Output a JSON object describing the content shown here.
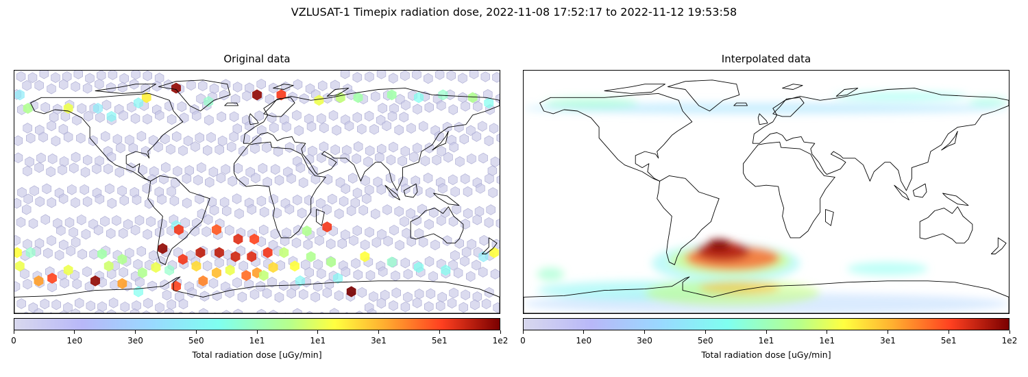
{
  "suptitle": "VZLUSAT-1 Timepix radiation dose, 2022-11-08 17:52:17 to 2022-11-12 19:53:58",
  "chart_data": [
    {
      "type": "heatmap",
      "title": "Original data",
      "projection": "equirectangular world map",
      "colorbar": {
        "label": "Total radiation dose [uGy/min]",
        "tick_labels": [
          "0",
          "1e0",
          "3e0",
          "5e0",
          "1e1",
          "1e1",
          "3e1",
          "5e1",
          "1e2"
        ]
      },
      "colors": {
        "background_hex": "#c8c8e6",
        "low": "#d8d8ee",
        "high": "#7a0000"
      },
      "hex_points": [
        {
          "lon": -60,
          "lat": 77,
          "dose": 90
        },
        {
          "lon": 0,
          "lat": 72,
          "dose": 90
        },
        {
          "lon": 18,
          "lat": 72,
          "dose": 58
        },
        {
          "lon": 46,
          "lat": 68,
          "dose": 18
        },
        {
          "lon": -36,
          "lat": 67,
          "dose": 8
        },
        {
          "lon": -82,
          "lat": 70,
          "dose": 22
        },
        {
          "lon": 100,
          "lat": 72,
          "dose": 10
        },
        {
          "lon": 120,
          "lat": 70,
          "dose": 6
        },
        {
          "lon": 160,
          "lat": 70,
          "dose": 12
        },
        {
          "lon": -170,
          "lat": 62,
          "dose": 12
        },
        {
          "lon": -140,
          "lat": 62,
          "dose": 18
        },
        {
          "lon": -118,
          "lat": 62,
          "dose": 4
        },
        {
          "lon": -88,
          "lat": 66,
          "dose": 5
        },
        {
          "lon": 62,
          "lat": 70,
          "dose": 14
        },
        {
          "lon": 75,
          "lat": 70,
          "dose": 10
        },
        {
          "lon": 138,
          "lat": 72,
          "dose": 8
        },
        {
          "lon": -108,
          "lat": 56,
          "dose": 5
        },
        {
          "lon": 172,
          "lat": 66,
          "dose": 6
        },
        {
          "lon": -176,
          "lat": 72,
          "dose": 4
        },
        {
          "lon": 52,
          "lat": -26,
          "dose": 60
        },
        {
          "lon": 37,
          "lat": -29,
          "dose": 12
        },
        {
          "lon": -60,
          "lat": -25,
          "dose": 5
        },
        {
          "lon": -30,
          "lat": -28,
          "dose": 50
        },
        {
          "lon": -58,
          "lat": -28,
          "dose": 60
        },
        {
          "lon": -28,
          "lat": -45,
          "dose": 75
        },
        {
          "lon": -42,
          "lat": -45,
          "dose": 75
        },
        {
          "lon": -14,
          "lat": -35,
          "dose": 65
        },
        {
          "lon": -2,
          "lat": -35,
          "dose": 55
        },
        {
          "lon": -16,
          "lat": -48,
          "dose": 70
        },
        {
          "lon": -4,
          "lat": -48,
          "dose": 65
        },
        {
          "lon": 8,
          "lat": -45,
          "dose": 60
        },
        {
          "lon": -20,
          "lat": -58,
          "dose": 18
        },
        {
          "lon": 12,
          "lat": -56,
          "dose": 25
        },
        {
          "lon": 28,
          "lat": -55,
          "dose": 20
        },
        {
          "lon": -70,
          "lat": -42,
          "dose": 90
        },
        {
          "lon": -55,
          "lat": -50,
          "dose": 60
        },
        {
          "lon": -45,
          "lat": -55,
          "dose": 25
        },
        {
          "lon": -65,
          "lat": -58,
          "dose": 8
        },
        {
          "lon": -85,
          "lat": -60,
          "dose": 12
        },
        {
          "lon": -110,
          "lat": -55,
          "dose": 15
        },
        {
          "lon": -140,
          "lat": -58,
          "dose": 18
        },
        {
          "lon": -152,
          "lat": -64,
          "dose": 55
        },
        {
          "lon": -162,
          "lat": -66,
          "dose": 35
        },
        {
          "lon": -176,
          "lat": -55,
          "dose": 18
        },
        {
          "lon": -178,
          "lat": -45,
          "dose": 20
        },
        {
          "lon": -168,
          "lat": -45,
          "dose": 8
        },
        {
          "lon": -120,
          "lat": -66,
          "dose": 90
        },
        {
          "lon": -100,
          "lat": -68,
          "dose": 35
        },
        {
          "lon": -88,
          "lat": -74,
          "dose": 6
        },
        {
          "lon": -60,
          "lat": -70,
          "dose": 55
        },
        {
          "lon": -40,
          "lat": -66,
          "dose": 40
        },
        {
          "lon": -30,
          "lat": -60,
          "dose": 30
        },
        {
          "lon": -8,
          "lat": -62,
          "dose": 45
        },
        {
          "lon": 0,
          "lat": -60,
          "dose": 35
        },
        {
          "lon": 32,
          "lat": -66,
          "dose": 5
        },
        {
          "lon": 55,
          "lat": -52,
          "dose": 12
        },
        {
          "lon": 80,
          "lat": -48,
          "dose": 20
        },
        {
          "lon": 100,
          "lat": -52,
          "dose": 8
        },
        {
          "lon": 120,
          "lat": -56,
          "dose": 6
        },
        {
          "lon": 140,
          "lat": -58,
          "dose": 6
        },
        {
          "lon": 168,
          "lat": -48,
          "dose": 4
        },
        {
          "lon": 176,
          "lat": -45,
          "dose": 20
        },
        {
          "lon": 70,
          "lat": -74,
          "dose": 100
        },
        {
          "lon": 40,
          "lat": -48,
          "dose": 12
        },
        {
          "lon": 20,
          "lat": -45,
          "dose": 14
        },
        {
          "lon": -100,
          "lat": -50,
          "dose": 12
        },
        {
          "lon": -115,
          "lat": -46,
          "dose": 10
        },
        {
          "lon": 60,
          "lat": -64,
          "dose": 5
        },
        {
          "lon": -75,
          "lat": -56,
          "dose": 18
        },
        {
          "lon": 5,
          "lat": -62,
          "dose": 14
        }
      ]
    },
    {
      "type": "heatmap",
      "title": "Interpolated data",
      "projection": "equirectangular world map",
      "colorbar": {
        "label": "Total radiation dose [uGy/min]",
        "tick_labels": [
          "0",
          "1e0",
          "3e0",
          "5e0",
          "1e1",
          "1e1",
          "3e1",
          "5e1",
          "1e2"
        ]
      },
      "colors": {
        "background_hex": "#ffffff",
        "low": "#d8d8ee",
        "high": "#7a0000"
      },
      "regions": [
        {
          "lon": -180,
          "lat": 66,
          "w": 360,
          "h": 8,
          "dose": 3,
          "opacity": 0.5
        },
        {
          "lon": -165,
          "lat": 70,
          "w": 70,
          "h": 8,
          "dose": 8,
          "opacity": 0.55
        },
        {
          "lon": 50,
          "lat": 74,
          "w": 100,
          "h": 6,
          "dose": 6,
          "opacity": 0.55
        },
        {
          "lon": 150,
          "lat": 70,
          "w": 30,
          "h": 6,
          "dose": 7,
          "opacity": 0.55
        },
        {
          "lon": -180,
          "lat": -75,
          "w": 360,
          "h": 16,
          "dose": 2,
          "opacity": 0.4
        },
        {
          "lon": -170,
          "lat": -66,
          "w": 160,
          "h": 14,
          "dose": 5,
          "opacity": 0.55
        },
        {
          "lon": -90,
          "lat": -65,
          "w": 130,
          "h": 20,
          "dose": 14,
          "opacity": 0.55
        },
        {
          "lon": -85,
          "lat": -38,
          "w": 110,
          "h": 30,
          "dose": 5,
          "opacity": 0.5
        },
        {
          "lon": -72,
          "lat": -40,
          "w": 90,
          "h": 22,
          "dose": 15,
          "opacity": 0.6
        },
        {
          "lon": -60,
          "lat": -40,
          "w": 70,
          "h": 18,
          "dose": 50,
          "opacity": 0.75
        },
        {
          "lon": -52,
          "lat": -37,
          "w": 40,
          "h": 14,
          "dose": 80,
          "opacity": 0.85
        },
        {
          "lon": -44,
          "lat": -35,
          "w": 18,
          "h": 8,
          "dose": 100,
          "opacity": 0.9
        },
        {
          "lon": -50,
          "lat": -66,
          "w": 60,
          "h": 10,
          "dose": 30,
          "opacity": 0.6
        },
        {
          "lon": -170,
          "lat": -56,
          "w": 20,
          "h": 10,
          "dose": 8,
          "opacity": 0.6
        },
        {
          "lon": 60,
          "lat": -52,
          "w": 60,
          "h": 10,
          "dose": 6,
          "opacity": 0.5
        }
      ]
    }
  ]
}
